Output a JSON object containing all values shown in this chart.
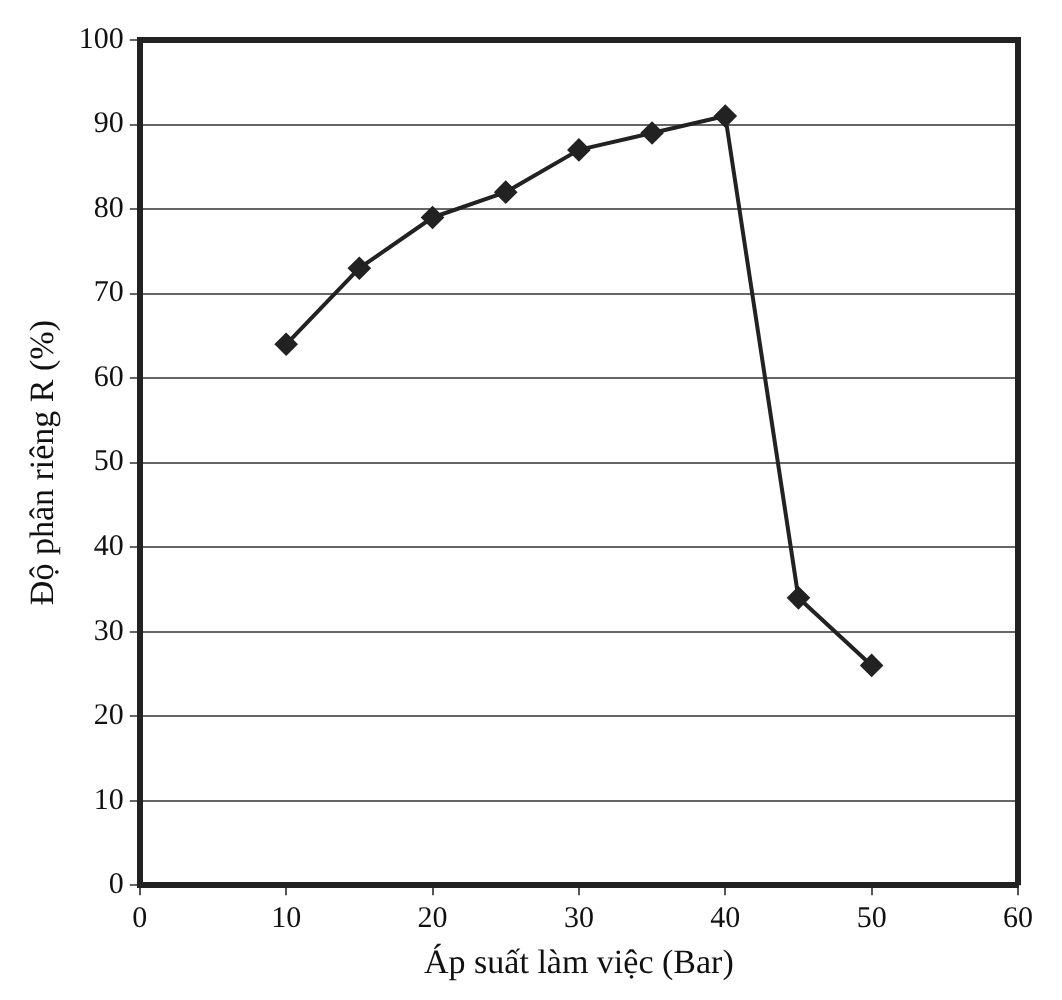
{
  "chart_data": {
    "type": "line",
    "xlabel": "Áp suất làm việc (Bar)",
    "ylabel": "Độ phân riêng R (%)",
    "x": [
      10,
      15,
      20,
      25,
      30,
      35,
      40,
      45,
      50
    ],
    "series": [
      {
        "color": "#222222",
        "values": [
          64,
          73,
          79,
          82,
          87,
          89,
          91,
          34,
          26
        ]
      }
    ],
    "xlim": [
      0,
      60
    ],
    "xticks": [
      0,
      10,
      20,
      30,
      40,
      50,
      60
    ],
    "ylim": [
      0,
      100
    ],
    "yticks": [
      0,
      10,
      20,
      30,
      40,
      50,
      60,
      70,
      80,
      90,
      100
    ],
    "grid": "y",
    "legend": false,
    "marker": "diamond",
    "line_style": "solid"
  }
}
